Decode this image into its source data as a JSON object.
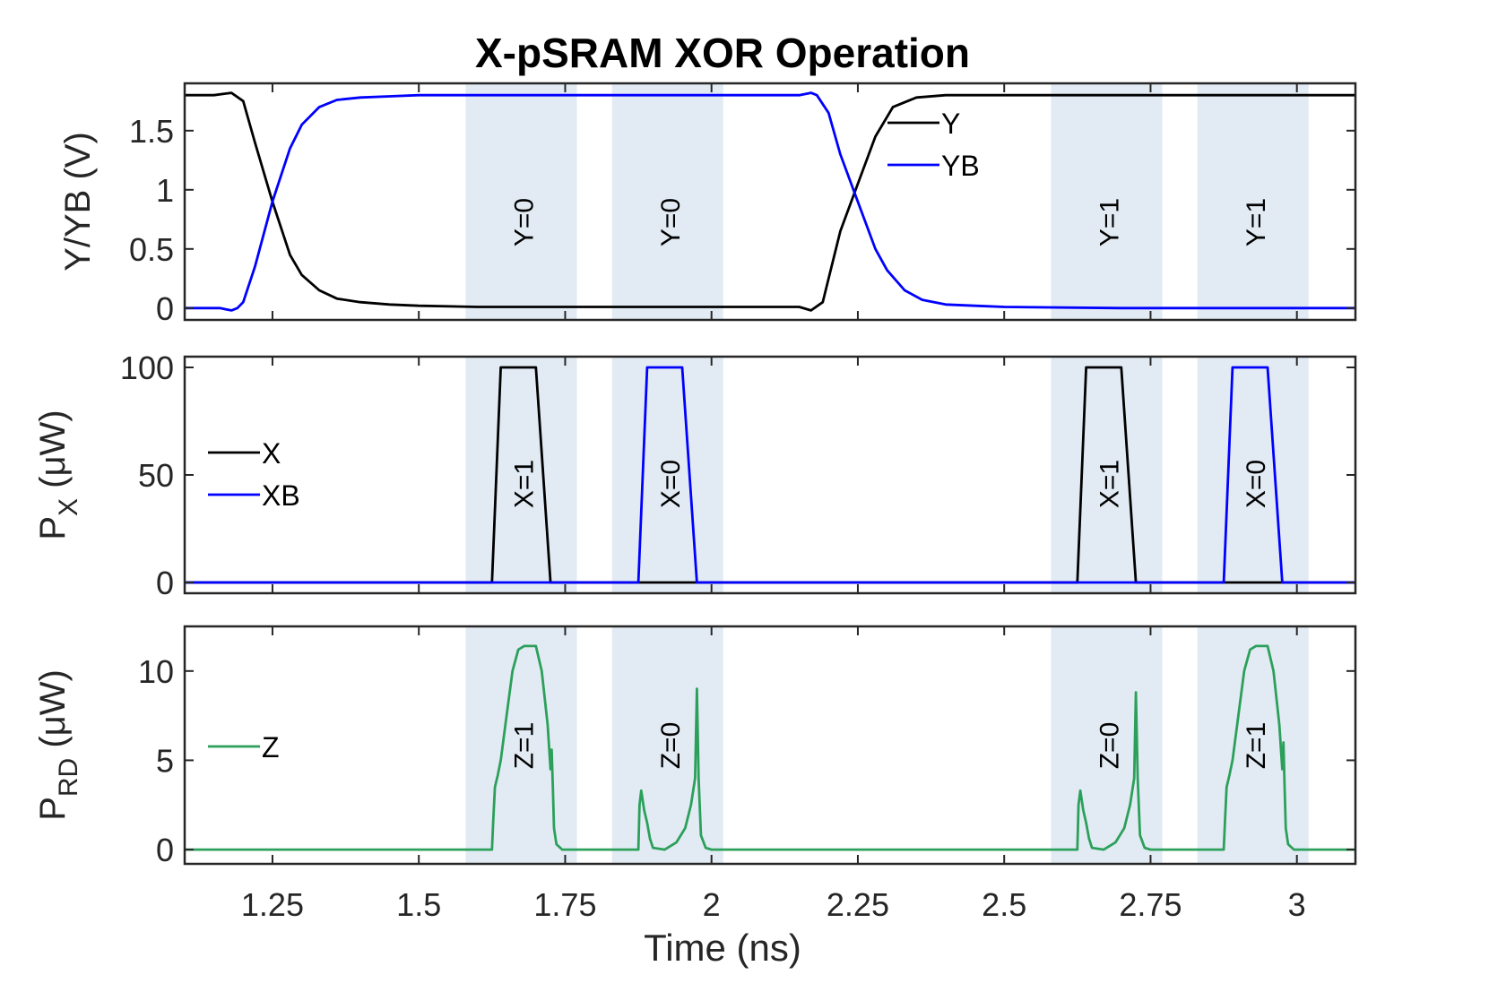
{
  "chart_data": {
    "type": "line",
    "title": "X-pSRAM XOR Operation",
    "xlabel": "Time (ns)",
    "xlim": [
      1.1,
      3.1
    ],
    "xticks": [
      1.25,
      1.5,
      1.75,
      2,
      2.25,
      2.5,
      2.75,
      3
    ],
    "xtick_labels": [
      "1.25",
      "1.5",
      "1.75",
      "2",
      "2.25",
      "2.5",
      "2.75",
      "3"
    ],
    "shaded_windows": [
      [
        1.58,
        1.77
      ],
      [
        1.83,
        2.02
      ],
      [
        2.58,
        2.77
      ],
      [
        2.83,
        3.02
      ]
    ],
    "panels": [
      {
        "ylabel": "Y/YB (V)",
        "ylim": [
          -0.1,
          1.9
        ],
        "yticks": [
          0,
          0.5,
          1,
          1.5
        ],
        "ytick_labels": [
          "0",
          "0.5",
          "1",
          "1.5"
        ],
        "legend": "top-right",
        "annotations": [
          {
            "text": "Y=0",
            "x": 1.68
          },
          {
            "text": "Y=0",
            "x": 1.93
          },
          {
            "text": "Y=1",
            "x": 2.68
          },
          {
            "text": "Y=1",
            "x": 2.93
          }
        ],
        "series": [
          {
            "name": "Y",
            "color": "#000000",
            "x": [
              1.1,
              1.15,
              1.18,
              1.2,
              1.22,
              1.25,
              1.28,
              1.3,
              1.33,
              1.36,
              1.4,
              1.45,
              1.5,
              1.6,
              1.8,
              2.0,
              2.15,
              2.17,
              2.19,
              2.2,
              2.22,
              2.25,
              2.28,
              2.31,
              2.35,
              2.4,
              2.5,
              2.7,
              3.1
            ],
            "y": [
              1.8,
              1.8,
              1.82,
              1.75,
              1.4,
              0.9,
              0.45,
              0.28,
              0.15,
              0.08,
              0.05,
              0.03,
              0.02,
              0.01,
              0.01,
              0.01,
              0.01,
              -0.02,
              0.05,
              0.25,
              0.65,
              1.05,
              1.45,
              1.7,
              1.78,
              1.8,
              1.8,
              1.8,
              1.8
            ]
          },
          {
            "name": "YB",
            "color": "#0000ff",
            "x": [
              1.1,
              1.16,
              1.18,
              1.19,
              1.2,
              1.22,
              1.25,
              1.28,
              1.3,
              1.33,
              1.36,
              1.4,
              1.45,
              1.5,
              1.6,
              1.8,
              2.0,
              2.15,
              2.17,
              2.18,
              2.2,
              2.22,
              2.25,
              2.28,
              2.3,
              2.33,
              2.36,
              2.4,
              2.45,
              2.5,
              2.7,
              3.1
            ],
            "y": [
              0.0,
              0.0,
              -0.02,
              0.0,
              0.05,
              0.35,
              0.9,
              1.35,
              1.55,
              1.7,
              1.76,
              1.78,
              1.79,
              1.8,
              1.8,
              1.8,
              1.8,
              1.8,
              1.82,
              1.8,
              1.65,
              1.3,
              0.9,
              0.5,
              0.32,
              0.15,
              0.07,
              0.03,
              0.02,
              0.01,
              0.0,
              0.0
            ]
          }
        ]
      },
      {
        "ylabel": "P_X (μW)",
        "ylim": [
          -5,
          105
        ],
        "yticks": [
          0,
          50,
          100
        ],
        "ytick_labels": [
          "0",
          "50",
          "100"
        ],
        "legend": "middle-left",
        "annotations": [
          {
            "text": "X=1",
            "x": 1.68
          },
          {
            "text": "X=0",
            "x": 1.93
          },
          {
            "text": "X=1",
            "x": 2.68
          },
          {
            "text": "X=0",
            "x": 2.93
          }
        ],
        "series": [
          {
            "name": "X",
            "color": "#000000",
            "x": [
              1.1,
              1.625,
              1.64,
              1.7,
              1.725,
              2.625,
              2.64,
              2.7,
              2.725,
              3.1
            ],
            "y": [
              0,
              0,
              100,
              100,
              0,
              0,
              100,
              100,
              0,
              0
            ]
          },
          {
            "name": "XB",
            "color": "#0000ff",
            "x": [
              1.1,
              1.875,
              1.89,
              1.95,
              1.975,
              2.875,
              2.89,
              2.95,
              2.975,
              3.1
            ],
            "y": [
              0,
              0,
              100,
              100,
              0,
              0,
              100,
              100,
              0,
              0
            ]
          }
        ]
      },
      {
        "ylabel": "P_RD (μW)",
        "ylim": [
          -0.8,
          12.5
        ],
        "yticks": [
          0,
          5,
          10
        ],
        "ytick_labels": [
          "0",
          "5",
          "10"
        ],
        "legend": "middle-left",
        "annotations": [
          {
            "text": "Z=1",
            "x": 1.68
          },
          {
            "text": "Z=0",
            "x": 1.93
          },
          {
            "text": "Z=0",
            "x": 2.68
          },
          {
            "text": "Z=1",
            "x": 2.93
          }
        ],
        "series": [
          {
            "name": "Z",
            "color": "#2ca05a",
            "x": [
              1.1,
              1.625,
              1.627,
              1.63,
              1.635,
              1.64,
              1.65,
              1.66,
              1.67,
              1.68,
              1.7,
              1.71,
              1.72,
              1.725,
              1.727,
              1.729,
              1.731,
              1.735,
              1.745,
              1.76,
              1.875,
              1.877,
              1.88,
              1.885,
              1.89,
              1.895,
              1.9,
              1.92,
              1.94,
              1.955,
              1.965,
              1.972,
              1.975,
              1.978,
              1.982,
              1.99,
              2.0,
              2.625,
              2.627,
              2.63,
              2.635,
              2.64,
              2.645,
              2.65,
              2.67,
              2.69,
              2.705,
              2.715,
              2.722,
              2.725,
              2.728,
              2.732,
              2.74,
              2.75,
              2.875,
              2.877,
              2.88,
              2.885,
              2.89,
              2.9,
              2.91,
              2.92,
              2.93,
              2.95,
              2.96,
              2.97,
              2.975,
              2.977,
              2.979,
              2.981,
              2.985,
              2.995,
              3.01,
              3.1
            ],
            "y": [
              0,
              0,
              1.5,
              3.5,
              4.2,
              5.0,
              7.5,
              10.0,
              11.2,
              11.4,
              11.4,
              10.0,
              7.0,
              4.5,
              5.6,
              3.5,
              1.2,
              0.3,
              0.0,
              0.0,
              0.0,
              2.5,
              3.3,
              2.2,
              1.5,
              0.6,
              0.1,
              0.0,
              0.4,
              1.2,
              2.5,
              4.0,
              9.0,
              4.0,
              0.8,
              0.1,
              0.0,
              0.0,
              2.5,
              3.3,
              2.2,
              1.5,
              0.6,
              0.1,
              0.0,
              0.4,
              1.2,
              2.5,
              4.0,
              8.8,
              4.0,
              0.8,
              0.1,
              0.0,
              0.0,
              1.5,
              3.5,
              4.2,
              5.0,
              7.5,
              10.0,
              11.2,
              11.4,
              11.4,
              10.0,
              7.0,
              4.5,
              6.0,
              3.5,
              1.2,
              0.3,
              0.0,
              0.0,
              0.0
            ]
          }
        ]
      }
    ]
  }
}
